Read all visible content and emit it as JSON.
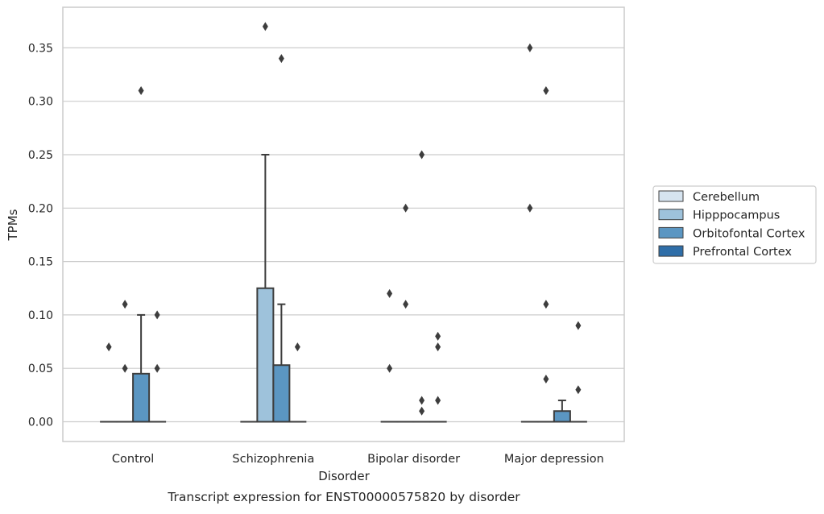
{
  "chart_data": {
    "type": "box",
    "xlabel": "Disorder",
    "ylabel": "TPMs",
    "caption": "Transcript expression for ENST00000575820 by disorder",
    "ylim": [
      -0.018,
      0.389
    ],
    "yticks": [
      0.0,
      0.05,
      0.1,
      0.15,
      0.2,
      0.25,
      0.3,
      0.35
    ],
    "ytick_labels": [
      "0.00",
      "0.05",
      "0.10",
      "0.15",
      "0.20",
      "0.25",
      "0.30",
      "0.35"
    ],
    "categories": [
      "Control",
      "Schizophrenia",
      "Bipolar disorder",
      "Major depression"
    ],
    "grid": "horizontal",
    "legend_position": "right",
    "series": [
      {
        "name": "Cerebellum",
        "color": "#d6e4f0",
        "boxes": [
          {
            "q1": 0,
            "median": 0,
            "q3": 0,
            "whisker_low": 0,
            "whisker_high": 0,
            "outliers": [
              0.07
            ]
          },
          {
            "q1": 0,
            "median": 0,
            "q3": 0,
            "whisker_low": 0,
            "whisker_high": 0,
            "outliers": []
          },
          {
            "q1": 0,
            "median": 0,
            "q3": 0,
            "whisker_low": 0,
            "whisker_high": 0,
            "outliers": [
              0.12,
              0.05
            ]
          },
          {
            "q1": 0,
            "median": 0,
            "q3": 0,
            "whisker_low": 0,
            "whisker_high": 0,
            "outliers": [
              0.35,
              0.2
            ]
          }
        ]
      },
      {
        "name": "Hipppocampus",
        "color": "#9ec2db",
        "boxes": [
          {
            "q1": 0,
            "median": 0,
            "q3": 0,
            "whisker_low": 0,
            "whisker_high": 0,
            "outliers": [
              0.11,
              0.05
            ]
          },
          {
            "q1": 0,
            "median": 0,
            "q3": 0.125,
            "whisker_low": 0,
            "whisker_high": 0.25,
            "outliers": [
              0.37
            ]
          },
          {
            "q1": 0,
            "median": 0,
            "q3": 0,
            "whisker_low": 0,
            "whisker_high": 0,
            "outliers": [
              0.2,
              0.11
            ]
          },
          {
            "q1": 0,
            "median": 0,
            "q3": 0,
            "whisker_low": 0,
            "whisker_high": 0,
            "outliers": [
              0.31,
              0.11,
              0.04
            ]
          }
        ]
      },
      {
        "name": "Orbitofontal Cortex",
        "color": "#5b96c2",
        "boxes": [
          {
            "q1": 0,
            "median": 0,
            "q3": 0.045,
            "whisker_low": 0,
            "whisker_high": 0.1,
            "outliers": [
              0.31
            ]
          },
          {
            "q1": 0,
            "median": 0,
            "q3": 0.053,
            "whisker_low": 0,
            "whisker_high": 0.11,
            "outliers": [
              0.34
            ]
          },
          {
            "q1": 0,
            "median": 0,
            "q3": 0,
            "whisker_low": 0,
            "whisker_high": 0,
            "outliers": [
              0.25,
              0.02,
              0.01
            ]
          },
          {
            "q1": 0,
            "median": 0,
            "q3": 0.01,
            "whisker_low": 0,
            "whisker_high": 0.02,
            "outliers": []
          }
        ]
      },
      {
        "name": "Prefrontal Cortex",
        "color": "#2f6ea8",
        "boxes": [
          {
            "q1": 0,
            "median": 0,
            "q3": 0,
            "whisker_low": 0,
            "whisker_high": 0,
            "outliers": [
              0.1,
              0.05
            ]
          },
          {
            "q1": 0,
            "median": 0,
            "q3": 0,
            "whisker_low": 0,
            "whisker_high": 0,
            "outliers": [
              0.07
            ]
          },
          {
            "q1": 0,
            "median": 0,
            "q3": 0,
            "whisker_low": 0,
            "whisker_high": 0,
            "outliers": [
              0.08,
              0.07,
              0.02
            ]
          },
          {
            "q1": 0,
            "median": 0,
            "q3": 0,
            "whisker_low": 0,
            "whisker_high": 0,
            "outliers": [
              0.09,
              0.03
            ]
          }
        ]
      }
    ]
  }
}
